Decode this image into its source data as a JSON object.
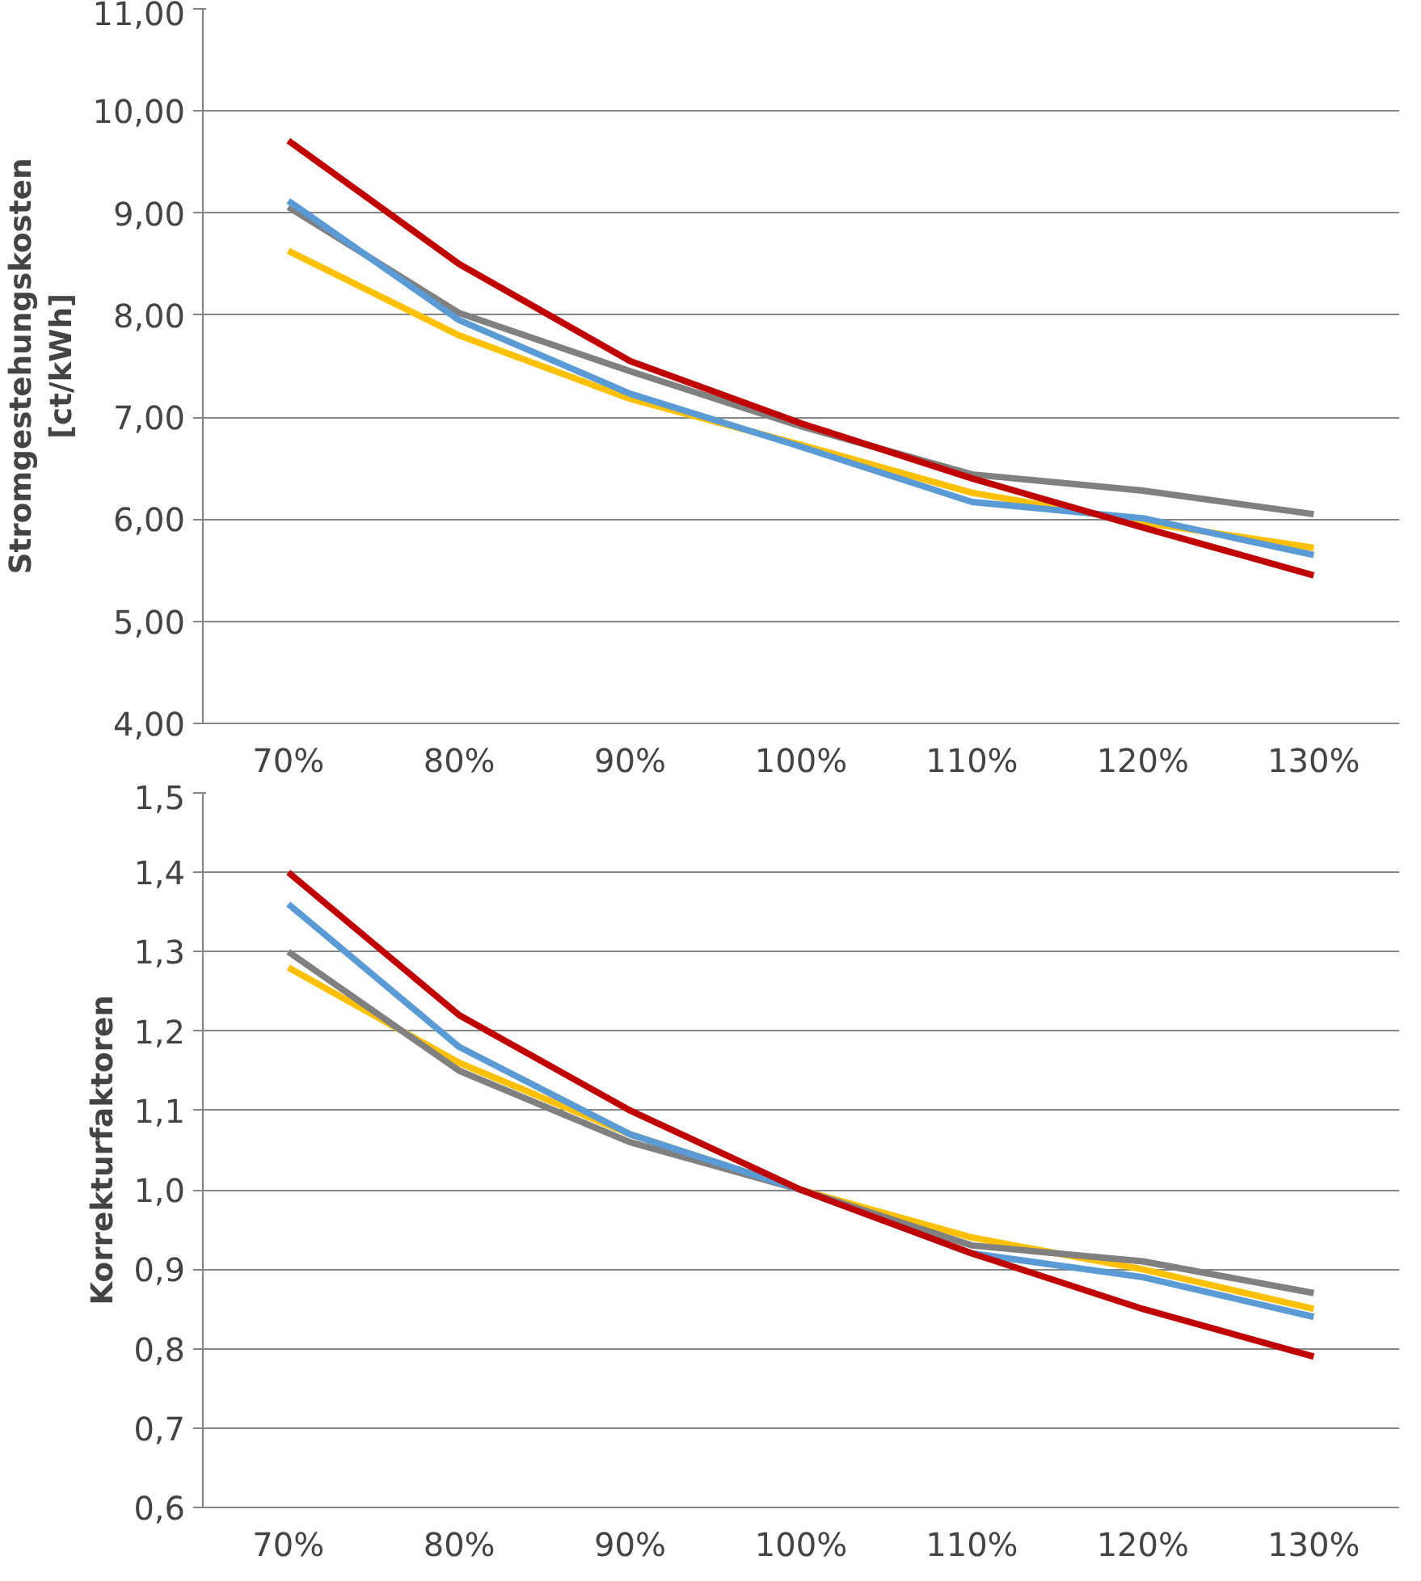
{
  "chart_data": [
    {
      "type": "line",
      "ylabel": "Stromgestehungskosten\n[ct/kWh]",
      "categories": [
        "70%",
        "80%",
        "90%",
        "100%",
        "110%",
        "120%",
        "130%"
      ],
      "series": [
        {
          "color": "#ffc000",
          "values": [
            8.63,
            7.8,
            7.18,
            6.73,
            6.26,
            5.97,
            5.72
          ]
        },
        {
          "color": "#808080",
          "values": [
            9.06,
            8.02,
            7.45,
            6.91,
            6.44,
            6.28,
            6.05
          ]
        },
        {
          "color": "#5b9bd5",
          "values": [
            9.12,
            7.95,
            7.23,
            6.71,
            6.17,
            6.01,
            5.65
          ]
        },
        {
          "color": "#c00000",
          "values": [
            9.71,
            8.5,
            7.55,
            6.94,
            6.4,
            5.92,
            5.45
          ]
        }
      ],
      "ylim": [
        4,
        11
      ],
      "yticks": [
        {
          "value": 4,
          "label": "4,00"
        },
        {
          "value": 5,
          "label": "5,00"
        },
        {
          "value": 6,
          "label": "6,00"
        },
        {
          "value": 7,
          "label": "7,00"
        },
        {
          "value": 8,
          "label": "8,00"
        },
        {
          "value": 9,
          "label": "9,00"
        },
        {
          "value": 10,
          "label": "10,00"
        },
        {
          "value": 11,
          "label": "11,00"
        }
      ],
      "grid": "y",
      "marker": "none",
      "line_style": "solid"
    },
    {
      "type": "line",
      "ylabel": "Korrekturfaktoren",
      "categories": [
        "70%",
        "80%",
        "90%",
        "100%",
        "110%",
        "120%",
        "130%"
      ],
      "series": [
        {
          "color": "#ffc000",
          "values": [
            1.28,
            1.16,
            1.07,
            1.0,
            0.94,
            0.9,
            0.85
          ]
        },
        {
          "color": "#808080",
          "values": [
            1.3,
            1.15,
            1.06,
            1.0,
            0.93,
            0.91,
            0.87
          ]
        },
        {
          "color": "#5b9bd5",
          "values": [
            1.36,
            1.18,
            1.07,
            1.0,
            0.92,
            0.89,
            0.84
          ]
        },
        {
          "color": "#c00000",
          "values": [
            1.4,
            1.22,
            1.1,
            1.0,
            0.92,
            0.85,
            0.79
          ]
        }
      ],
      "ylim": [
        0.6,
        1.5
      ],
      "yticks": [
        {
          "value": 0.6,
          "label": "0,6"
        },
        {
          "value": 0.7,
          "label": "0,7"
        },
        {
          "value": 0.8,
          "label": "0,8"
        },
        {
          "value": 0.9,
          "label": "0,9"
        },
        {
          "value": 1.0,
          "label": "1,0"
        },
        {
          "value": 1.1,
          "label": "1,1"
        },
        {
          "value": 1.2,
          "label": "1,2"
        },
        {
          "value": 1.3,
          "label": "1,3"
        },
        {
          "value": 1.4,
          "label": "1,4"
        },
        {
          "value": 1.5,
          "label": "1,5"
        }
      ],
      "grid": "y",
      "marker": "none",
      "line_style": "solid"
    }
  ]
}
